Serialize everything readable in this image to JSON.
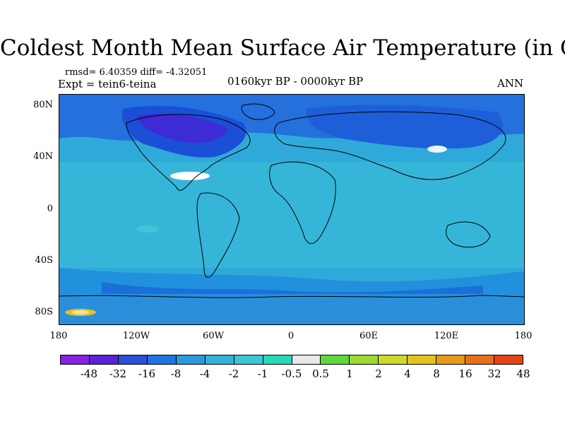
{
  "title": "Coldest Month Mean Surface Air Temperature (in C)",
  "stats_line": "rmsd= 6.40359 diff= -4.32051",
  "experiment_line": "Expt = tein6-teina",
  "period_label": "0160kyr BP - 0000kyr BP",
  "season_label": "ANN",
  "y_axis_labels": [
    "80N",
    "40N",
    "0",
    "40S",
    "80S"
  ],
  "x_axis_labels": [
    "180",
    "120W",
    "60W",
    "0",
    "60E",
    "120E",
    "180"
  ],
  "colorbar": {
    "colors": [
      "#8a1fe6",
      "#5a22d9",
      "#2b4fd8",
      "#1e74e0",
      "#2b99dc",
      "#33b3d9",
      "#3dc7d6",
      "#26d9b8",
      "#e8e8e8",
      "#5cd93a",
      "#9ed92e",
      "#cfd92b",
      "#e6c21f",
      "#e69a1a",
      "#e6701a",
      "#e64516"
    ],
    "labels": [
      "-48",
      "-32",
      "-16",
      "-8",
      "-4",
      "-2",
      "-1",
      "-0.5",
      "0.5",
      "1",
      "2",
      "4",
      "8",
      "16",
      "32",
      "48"
    ]
  }
}
